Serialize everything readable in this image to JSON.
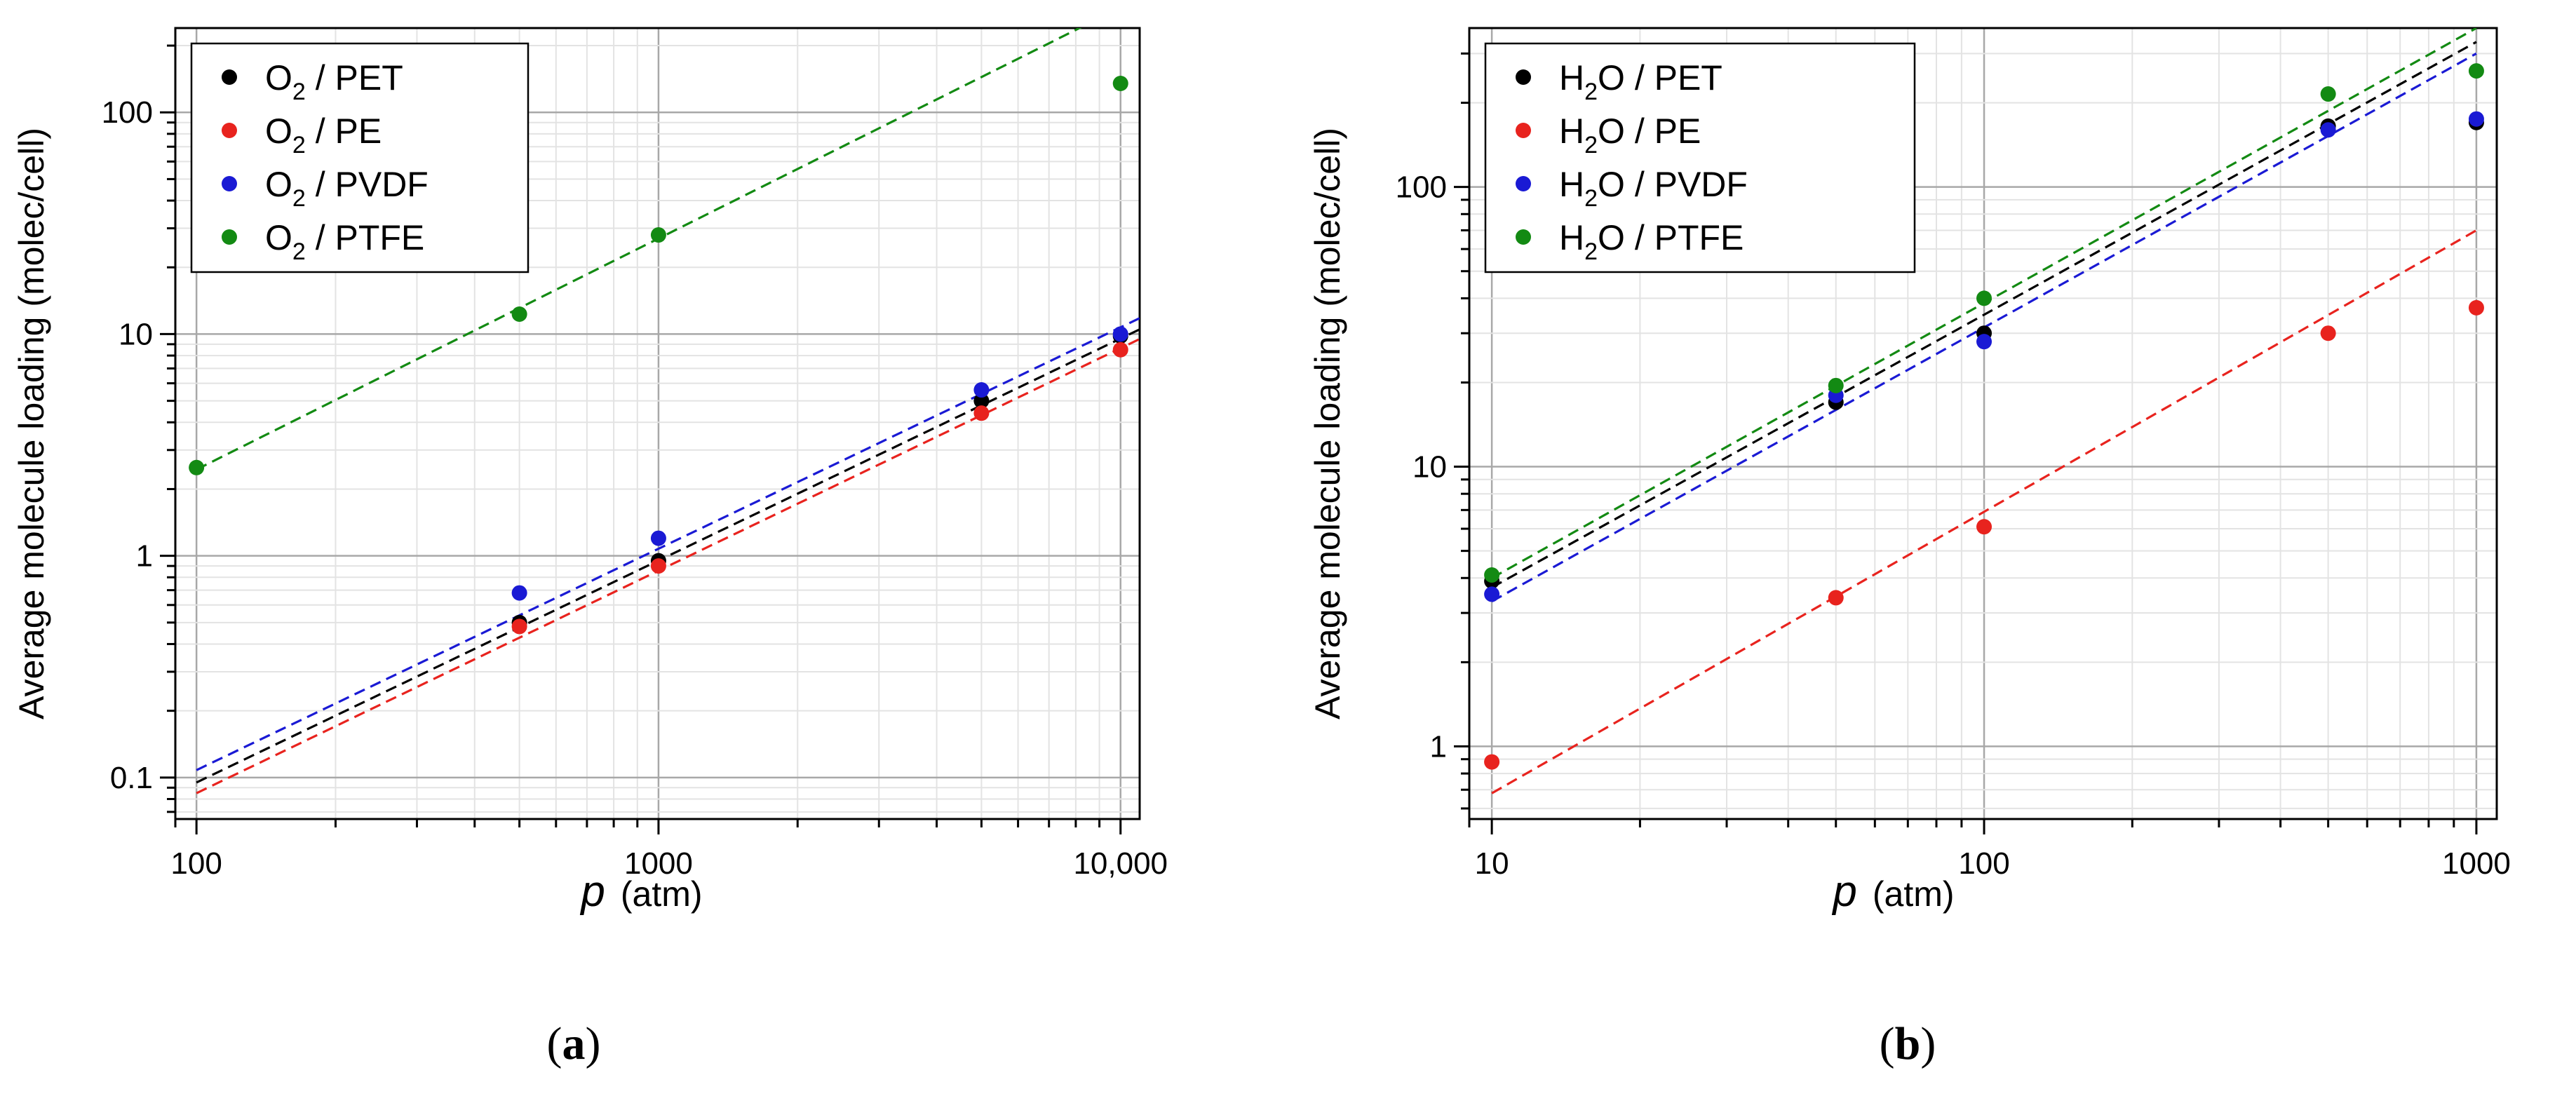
{
  "chart_data": [
    {
      "type": "scatter",
      "panel": "a",
      "caption": {
        "open": "(",
        "letter": "a",
        "close": ")"
      },
      "title": "",
      "xlabel": {
        "var": "p",
        "unit": "(atm)"
      },
      "ylabel": "Average molecule loading (molec/cell)",
      "xscale": "log",
      "yscale": "log",
      "xlim": [
        90,
        11000
      ],
      "ylim": [
        0.065,
        240
      ],
      "xticks": [
        {
          "v": 100,
          "label": "100"
        },
        {
          "v": 1000,
          "label": "1000"
        },
        {
          "v": 10000,
          "label": "10,000"
        }
      ],
      "yticks": [
        {
          "v": 0.1,
          "label": "0.1"
        },
        {
          "v": 1,
          "label": "1"
        },
        {
          "v": 10,
          "label": "10"
        },
        {
          "v": 100,
          "label": "100"
        }
      ],
      "grid": true,
      "legend_position": "top-left",
      "series": [
        {
          "molecule": "O",
          "sub": "2",
          "name": "PET",
          "sep": " /  ",
          "color": "#000000",
          "points": [
            [
              500,
              0.5
            ],
            [
              1000,
              0.95
            ],
            [
              5000,
              5.0
            ],
            [
              10000,
              9.8
            ]
          ],
          "fit": {
            "x": [
              100,
              11000
            ],
            "y": [
              0.095,
              10.5
            ]
          }
        },
        {
          "molecule": "O",
          "sub": "2",
          "name": "PE",
          "sep": " / ",
          "color": "#e8231e",
          "points": [
            [
              500,
              0.48
            ],
            [
              1000,
              0.9
            ],
            [
              5000,
              4.4
            ],
            [
              10000,
              8.5
            ]
          ],
          "fit": {
            "x": [
              100,
              11000
            ],
            "y": [
              0.085,
              9.5
            ]
          }
        },
        {
          "molecule": "O",
          "sub": "2",
          "name": "PVDF",
          "sep": " / ",
          "color": "#1a1ad4",
          "points": [
            [
              500,
              0.68
            ],
            [
              1000,
              1.2
            ],
            [
              5000,
              5.6
            ],
            [
              10000,
              10.0
            ]
          ],
          "fit": {
            "x": [
              100,
              11000
            ],
            "y": [
              0.108,
              11.8
            ]
          }
        },
        {
          "molecule": "O",
          "sub": "2",
          "name": "PTFE",
          "sep": " / ",
          "color": "#138a13",
          "points": [
            [
              100,
              2.5
            ],
            [
              500,
              12.3
            ],
            [
              1000,
              28.0
            ],
            [
              10000,
              135
            ]
          ],
          "fit": {
            "x": [
              100,
              8800
            ],
            "y": [
              2.45,
              260
            ]
          }
        }
      ]
    },
    {
      "type": "scatter",
      "panel": "b",
      "caption": {
        "open": "(",
        "letter": "b",
        "close": ")"
      },
      "title": "",
      "xlabel": {
        "var": "p",
        "unit": "(atm)"
      },
      "ylabel": "Average molecule loading (molec/cell)",
      "xscale": "log",
      "yscale": "log",
      "xlim": [
        9,
        1100
      ],
      "ylim": [
        0.55,
        370
      ],
      "xticks": [
        {
          "v": 10,
          "label": "10"
        },
        {
          "v": 100,
          "label": "100"
        },
        {
          "v": 1000,
          "label": "1000"
        }
      ],
      "yticks": [
        {
          "v": 1,
          "label": "1"
        },
        {
          "v": 10,
          "label": "10"
        },
        {
          "v": 100,
          "label": "100"
        }
      ],
      "grid": true,
      "legend_position": "top-left",
      "series": [
        {
          "molecule": "H",
          "sub": "2",
          "name": "PET",
          "tail": "O",
          "sep": " /  ",
          "color": "#000000",
          "points": [
            [
              10,
              3.9
            ],
            [
              50,
              17.0
            ],
            [
              100,
              30.0
            ],
            [
              500,
              165
            ],
            [
              1000,
              170
            ]
          ],
          "fit": {
            "x": [
              10,
              1000
            ],
            "y": [
              3.7,
              330
            ]
          }
        },
        {
          "molecule": "H",
          "sub": "2",
          "name": "PE",
          "tail": "O",
          "sep": " / ",
          "color": "#e8231e",
          "points": [
            [
              10,
              0.88
            ],
            [
              50,
              3.4
            ],
            [
              100,
              6.1
            ],
            [
              500,
              30.0
            ],
            [
              1000,
              37.0
            ]
          ],
          "fit": {
            "x": [
              10,
              1000
            ],
            "y": [
              0.68,
              70
            ]
          }
        },
        {
          "molecule": "H",
          "sub": "2",
          "name": "PVDF",
          "tail": "O",
          "sep": " / ",
          "color": "#1a1ad4",
          "points": [
            [
              10,
              3.5
            ],
            [
              50,
              18.0
            ],
            [
              100,
              28.0
            ],
            [
              500,
              160
            ],
            [
              1000,
              175
            ]
          ],
          "fit": {
            "x": [
              10,
              1000
            ],
            "y": [
              3.3,
              300
            ]
          }
        },
        {
          "molecule": "H",
          "sub": "2",
          "name": "PTFE",
          "tail": "O",
          "sep": " / ",
          "color": "#138a13",
          "points": [
            [
              10,
              4.1
            ],
            [
              50,
              19.5
            ],
            [
              100,
              40.0
            ],
            [
              500,
              215
            ],
            [
              1000,
              260
            ]
          ],
          "fit": {
            "x": [
              10,
              1000
            ],
            "y": [
              4.0,
              370
            ]
          }
        }
      ]
    }
  ]
}
